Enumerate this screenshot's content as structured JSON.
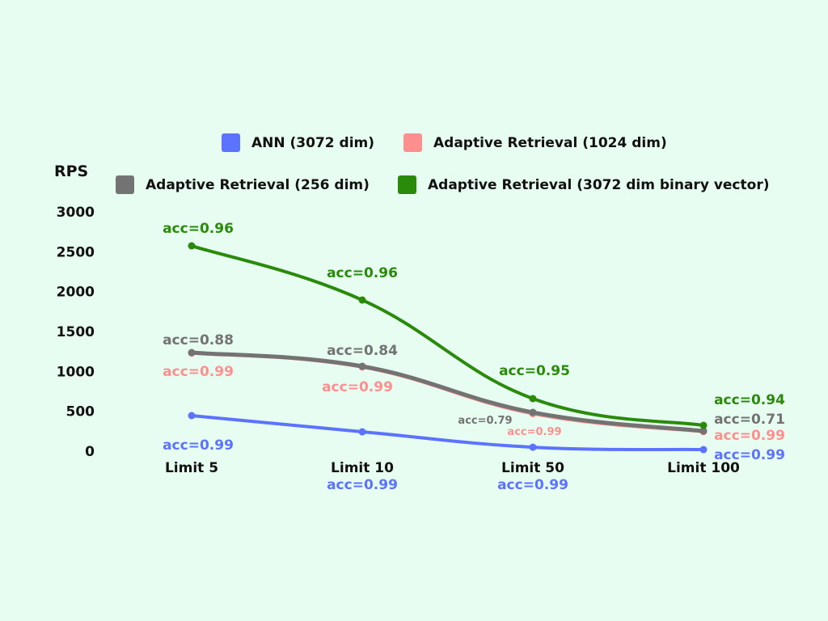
{
  "chart_data": {
    "type": "line",
    "ylabel": "RPS",
    "xlabel": "",
    "ylim": [
      0,
      3000
    ],
    "yticks": [
      0,
      500,
      1000,
      1500,
      2000,
      2500,
      3000
    ],
    "categories": [
      "Limit 5",
      "Limit 10",
      "Limit 50",
      "Limit 100"
    ],
    "grid": false,
    "legend_placement": "top",
    "series": [
      {
        "name": "ANN (3072 dim)",
        "color": "#5b73ff",
        "values": [
          446,
          243,
          50,
          20
        ],
        "labels": [
          "acc=0.99",
          "acc=0.99",
          "acc=0.99",
          "acc=0.99"
        ]
      },
      {
        "name": "Adaptive Retrieval (1024 dim)",
        "color": "#ff8f8f",
        "values": [
          1230,
          1055,
          470,
          245
        ],
        "labels": [
          "acc=0.99",
          "acc=0.99",
          "acc=0.99",
          "acc=0.99"
        ]
      },
      {
        "name": "Adaptive Retrieval (256 dim)",
        "color": "#737373",
        "values": [
          1236,
          1064,
          486,
          253
        ],
        "labels": [
          "acc=0.88",
          "acc=0.84",
          "acc=0.79",
          "acc=0.71"
        ]
      },
      {
        "name": "Adaptive Retrieval (3072 dim binary vector)",
        "color": "#2a8a0a",
        "values": [
          2574,
          1895,
          659,
          324
        ],
        "labels": [
          "acc=0.96",
          "acc=0.96",
          "acc=0.95",
          "acc=0.94"
        ]
      }
    ]
  }
}
